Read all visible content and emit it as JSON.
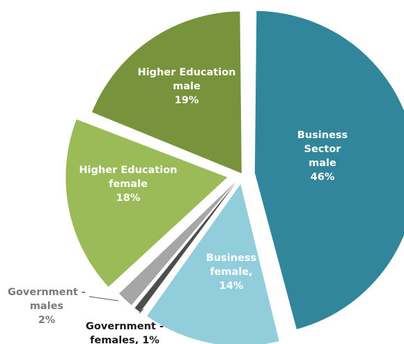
{
  "chart_data": {
    "type": "pie",
    "slices": [
      {
        "key": "business_male",
        "label_lines": [
          "Business",
          "Sector",
          "male",
          "46%"
        ],
        "value": 46,
        "color": "#31869b"
      },
      {
        "key": "business_female",
        "label_lines": [
          "Business",
          "female,",
          "14%"
        ],
        "value": 14,
        "color": "#92cddc"
      },
      {
        "key": "government_females",
        "label_lines": [
          "Government -",
          "females, 1%"
        ],
        "value": 1,
        "color": "#4d4d4d"
      },
      {
        "key": "government_males",
        "label_lines": [
          "Government -",
          "males",
          "2%"
        ],
        "value": 2,
        "color": "#a6a6a6"
      },
      {
        "key": "higher_education_female",
        "label_lines": [
          "Higher Education",
          "female",
          "18%"
        ],
        "value": 18,
        "color": "#9bbb59"
      },
      {
        "key": "higher_education_male",
        "label_lines": [
          "Higher Education",
          "male",
          "19%"
        ],
        "value": 19,
        "color": "#77933c"
      }
    ]
  }
}
